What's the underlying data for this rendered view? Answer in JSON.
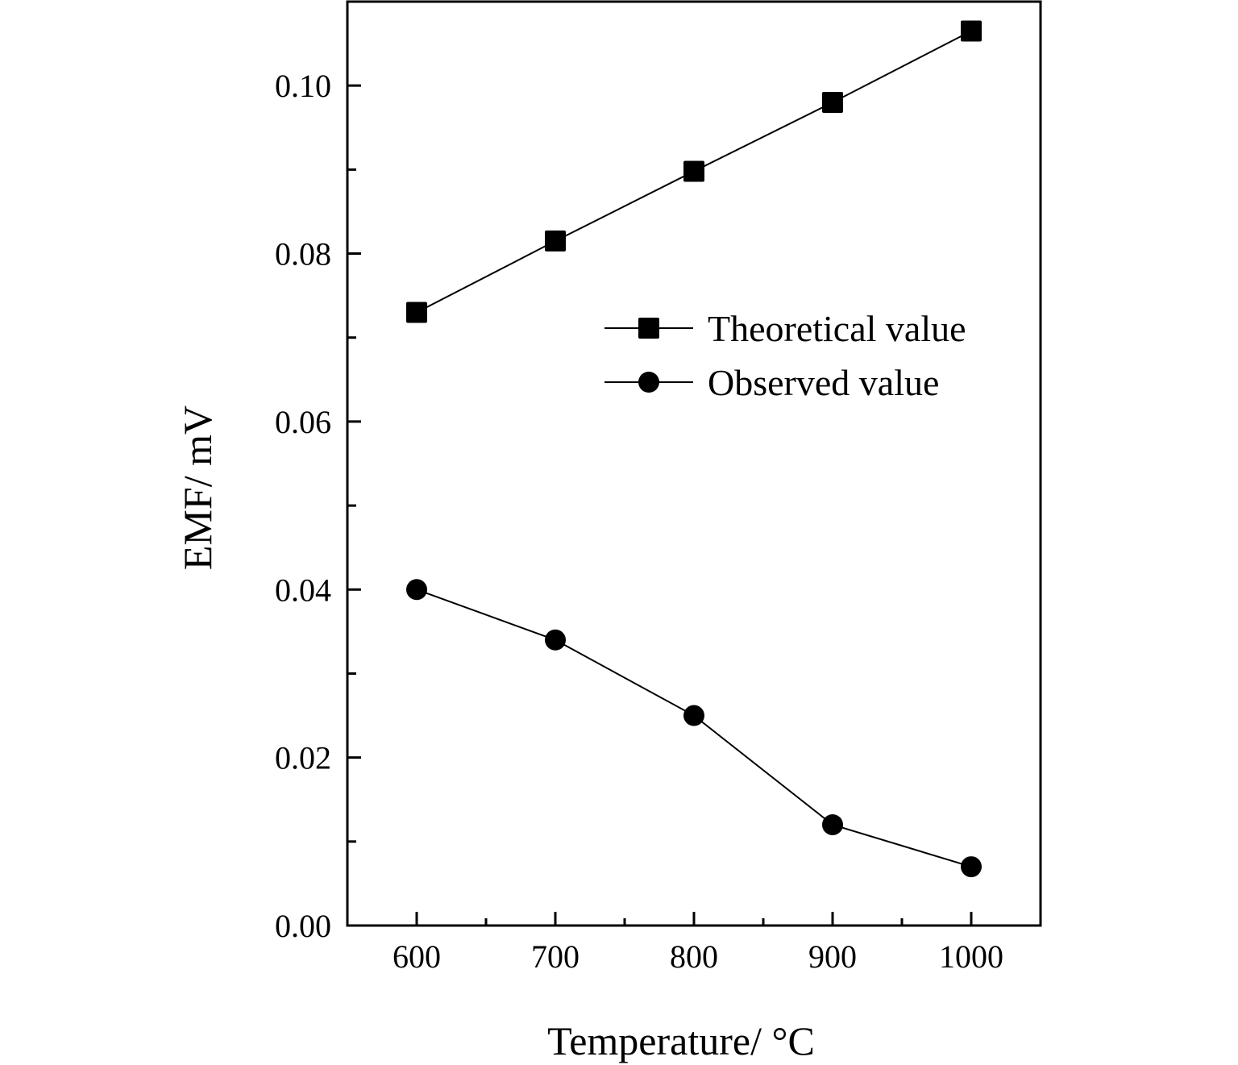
{
  "chart_data": {
    "type": "line",
    "title": "",
    "xlabel": "Temperature/ °C",
    "ylabel": "EMF/ mV",
    "xlim": [
      550,
      1050
    ],
    "ylim": [
      0,
      0.11
    ],
    "x_ticks": [
      600,
      700,
      800,
      900,
      1000
    ],
    "x_tick_labels": [
      "600",
      "700",
      "800",
      "900",
      "1000"
    ],
    "x_minor_ticks": [
      650,
      750,
      850,
      950
    ],
    "y_ticks": [
      0.0,
      0.02,
      0.04,
      0.06,
      0.08,
      0.1
    ],
    "y_tick_labels": [
      "0.00",
      "0.02",
      "0.04",
      "0.06",
      "0.08",
      "0.10"
    ],
    "y_minor_ticks": [
      0.01,
      0.03,
      0.05,
      0.07,
      0.09
    ],
    "grid": false,
    "legend_position": "right-middle",
    "x": [
      600,
      700,
      800,
      900,
      1000
    ],
    "series": [
      {
        "name": "Theoretical value",
        "marker": "square",
        "color": "#000000",
        "values": [
          0.073,
          0.0815,
          0.0898,
          0.098,
          0.1065
        ]
      },
      {
        "name": "Observed value",
        "marker": "circle",
        "color": "#000000",
        "values": [
          0.04,
          0.034,
          0.025,
          0.012,
          0.007
        ]
      }
    ]
  }
}
